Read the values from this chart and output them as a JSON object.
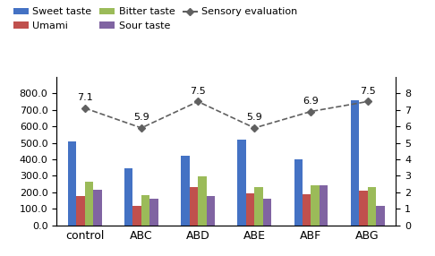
{
  "categories": [
    "control",
    "ABC",
    "ABD",
    "ABE",
    "ABF",
    "ABG"
  ],
  "sweet_taste": [
    510,
    345,
    420,
    520,
    400,
    760
  ],
  "umami": [
    175,
    115,
    230,
    195,
    190,
    210
  ],
  "bitter_taste": [
    265,
    185,
    295,
    230,
    240,
    230
  ],
  "sour_taste": [
    215,
    160,
    175,
    160,
    245,
    115
  ],
  "sensory_eval": [
    7.1,
    5.9,
    7.5,
    5.9,
    6.9,
    7.5
  ],
  "bar_colors": [
    "#4472C4",
    "#C0504D",
    "#9BBB59",
    "#8064A2"
  ],
  "line_color": "#606060",
  "ylim_left": [
    0,
    900
  ],
  "ylim_right": [
    0,
    9
  ],
  "yticks_left": [
    0.0,
    100.0,
    200.0,
    300.0,
    400.0,
    500.0,
    600.0,
    700.0,
    800.0
  ],
  "yticks_right": [
    0,
    1,
    2,
    3,
    4,
    5,
    6,
    7,
    8
  ],
  "legend_labels": [
    "Sweet taste",
    "Umami",
    "Bitter taste",
    "Sour taste",
    "Sensory evaluation"
  ],
  "bar_width": 0.15,
  "figure_width": 4.86,
  "figure_height": 2.86,
  "dpi": 100
}
